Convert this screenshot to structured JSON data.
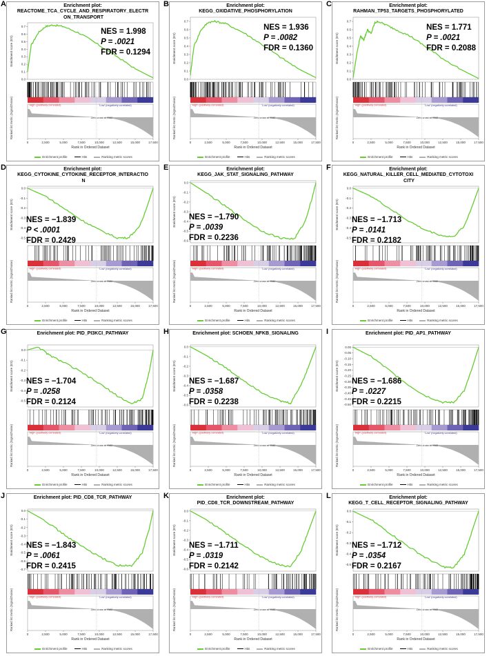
{
  "common": {
    "title_prefix": "Enrichment plot:",
    "ylabel_top": "Enrichment score (ES)",
    "ylabel_bottom": "Ranked list metric (Signal2Noise)",
    "xlabel": "Rank in Ordered Dataset",
    "x_ticks": [
      "0",
      "2,500",
      "5,000",
      "7,500",
      "10,000",
      "12,500",
      "15,000",
      "17,500"
    ],
    "zero_cross": "Zero cross at 9582",
    "high_label": "'High' (positively correlated)",
    "low_label": "'Low' (negatively correlated)",
    "legend": [
      "Enrichment profile",
      "Hits",
      "Ranking metric scores"
    ],
    "colors": {
      "profile": "#66cc33",
      "hits": "#000000",
      "metric": "#b0b0b0"
    }
  },
  "chart_data": [
    {
      "type": "line",
      "panel": "A",
      "title_line1": "Enrichment plot:",
      "title_line2": "REACTOME_TCA_CYCLE_AND_RESPIRATORY_ELECTR",
      "title_line3": "ON_TRANSPORT",
      "nes": "NES = 1.998",
      "p": "P = .0021",
      "fdr": "FDR = 0.1294",
      "es_ticks": [
        "0.7",
        "0.6",
        "0.5",
        "0.4",
        "0.3",
        "0.2",
        "0.1",
        "0.0"
      ],
      "ylim": [
        0,
        0.75
      ],
      "x": [
        0,
        500,
        1500,
        2500,
        3500,
        5000,
        7500,
        10000,
        12500,
        15000,
        17500
      ],
      "es": [
        0.1,
        0.45,
        0.62,
        0.7,
        0.72,
        0.7,
        0.6,
        0.45,
        0.3,
        0.14,
        0.02
      ]
    },
    {
      "type": "line",
      "panel": "B",
      "title_line1": "Enrichment plot:",
      "title_line2": "KEGG_OXIDATIVE_PHOSPHORYLATION",
      "title_line3": "",
      "nes": "NES = 1.936",
      "p": "P = .0082",
      "fdr": "FDR = 0.1360",
      "es_ticks": [
        "0.7",
        "0.6",
        "0.5",
        "0.4",
        "0.3",
        "0.2",
        "0.1",
        "0.0"
      ],
      "ylim": [
        0,
        0.75
      ],
      "x": [
        0,
        500,
        1500,
        2500,
        3500,
        5000,
        7500,
        10000,
        12500,
        15000,
        17500
      ],
      "es": [
        0.05,
        0.4,
        0.6,
        0.69,
        0.7,
        0.67,
        0.56,
        0.42,
        0.27,
        0.13,
        0.02
      ]
    },
    {
      "type": "line",
      "panel": "C",
      "title_line1": "Enrichment plot:",
      "title_line2": "RAHMAN_TP53_TARGETS_PHOSPHORYLATED",
      "title_line3": "",
      "nes": "NES = 1.771",
      "p": "P = .0021",
      "fdr": "FDR = 0.2088",
      "es_ticks": [
        "0.7",
        "0.6",
        "0.5",
        "0.4",
        "0.3",
        "0.2",
        "0.1",
        "0.0"
      ],
      "ylim": [
        0,
        0.75
      ],
      "x": [
        0,
        500,
        1000,
        1500,
        2000,
        2500,
        3000,
        3500,
        4500,
        6000,
        8000,
        10000,
        12500,
        15000,
        17500
      ],
      "es": [
        0.02,
        0.3,
        0.52,
        0.48,
        0.6,
        0.55,
        0.68,
        0.7,
        0.66,
        0.6,
        0.52,
        0.4,
        0.25,
        0.12,
        0.01
      ]
    },
    {
      "type": "line",
      "panel": "D",
      "title_line1": "Enrichment plot:",
      "title_line2": "KEGG_CYTOKINE_CYTOKINE_RECEPTOR_INTERACTIO",
      "title_line3": "N",
      "nes": "NES = −1.839",
      "p": "P < .0001",
      "fdr": "FDR = 0.2429",
      "es_ticks": [
        "0.0",
        "-0.1",
        "-0.2",
        "-0.3",
        "-0.4",
        "-0.5"
      ],
      "ylim": [
        -0.55,
        0.02
      ],
      "x": [
        0,
        2500,
        5000,
        7500,
        10000,
        12500,
        14000,
        15500,
        16500,
        17500
      ],
      "es": [
        0.0,
        -0.08,
        -0.2,
        -0.32,
        -0.42,
        -0.5,
        -0.5,
        -0.4,
        -0.22,
        0.0
      ]
    },
    {
      "type": "line",
      "panel": "E",
      "title_line1": "Enrichment plot:",
      "title_line2": "KEGG_JAK_STAT_SIGNALING_PATHWAY",
      "title_line3": "",
      "nes": "NES = −1.790",
      "p": "P = .0039",
      "fdr": "FDR = 0.2236",
      "es_ticks": [
        "0.0",
        "-0.1",
        "-0.2",
        "-0.3",
        "-0.4",
        "-0.5",
        "-0.6"
      ],
      "ylim": [
        -0.62,
        0.02
      ],
      "x": [
        0,
        2500,
        5000,
        7500,
        10000,
        12500,
        14500,
        16000,
        17000,
        17500
      ],
      "es": [
        0.0,
        -0.12,
        -0.25,
        -0.38,
        -0.5,
        -0.57,
        -0.58,
        -0.4,
        -0.15,
        0.0
      ]
    },
    {
      "type": "line",
      "panel": "F",
      "title_line1": "Enrichment plot:",
      "title_line2": "KEGG_NATURAL_KILLER_CELL_MEDIATED_CYTOTOXI",
      "title_line3": "CITY",
      "nes": "NES = −1.713",
      "p": "P = .0141",
      "fdr": "FDR = 0.2182",
      "es_ticks": [
        "0.0",
        "-0.1",
        "-0.2",
        "-0.3",
        "-0.4",
        "-0.5"
      ],
      "ylim": [
        -0.55,
        0.02
      ],
      "x": [
        0,
        2500,
        5000,
        7500,
        10000,
        12500,
        14000,
        15500,
        16500,
        17500
      ],
      "es": [
        0.0,
        -0.08,
        -0.2,
        -0.32,
        -0.42,
        -0.48,
        -0.49,
        -0.38,
        -0.2,
        0.0
      ]
    },
    {
      "type": "line",
      "panel": "G",
      "title_line1": "Enrichment plot: PID_PI3KCI_PATHWAY",
      "title_line2": "",
      "title_line3": "",
      "nes": "NES = −1.704",
      "p": "P = .0258",
      "fdr": "FDR = 0.2124",
      "es_ticks": [
        "0.0",
        "-0.1",
        "-0.2",
        "-0.3",
        "-0.4",
        "-0.5"
      ],
      "ylim": [
        -0.56,
        0.05
      ],
      "x": [
        0,
        1500,
        3000,
        5000,
        7500,
        10000,
        12500,
        14500,
        16000,
        17000,
        17500
      ],
      "es": [
        0.0,
        0.03,
        -0.05,
        -0.12,
        -0.22,
        -0.33,
        -0.45,
        -0.53,
        -0.48,
        -0.2,
        0.0
      ]
    },
    {
      "type": "line",
      "panel": "H",
      "title_line1": "Enrichment plot: SCHOEN_NFKB_SIGNALING",
      "title_line2": "",
      "title_line3": "",
      "nes": "NES = −1.687",
      "p": "P = .0358",
      "fdr": "FDR = 0.2238",
      "es_ticks": [
        "0.0",
        "-0.1",
        "-0.2",
        "-0.3",
        "-0.4",
        "-0.5",
        "-0.6"
      ],
      "ylim": [
        -0.62,
        0.02
      ],
      "x": [
        0,
        2500,
        5000,
        7500,
        10000,
        12500,
        14000,
        15500,
        16500,
        17500
      ],
      "es": [
        0.0,
        -0.1,
        -0.22,
        -0.35,
        -0.47,
        -0.56,
        -0.58,
        -0.38,
        -0.2,
        0.0
      ]
    },
    {
      "type": "line",
      "panel": "I",
      "title_line1": "Enrichment plot: PID_AP1_PATHWAY",
      "title_line2": "",
      "title_line3": "",
      "nes": "NES = −1.686",
      "p": "P = .0227",
      "fdr": "FDR = 0.2215",
      "es_ticks": [
        "0.00",
        "-0.05",
        "-0.10",
        "-0.15",
        "-0.20",
        "-0.25",
        "-0.30",
        "-0.35",
        "-0.40",
        "-0.45",
        "-0.50"
      ],
      "ylim": [
        -0.52,
        0.02
      ],
      "x": [
        0,
        2500,
        5000,
        7500,
        10000,
        12500,
        14000,
        15500,
        16500,
        17500
      ],
      "es": [
        0.0,
        -0.08,
        -0.2,
        -0.32,
        -0.42,
        -0.48,
        -0.48,
        -0.38,
        -0.2,
        0.0
      ]
    },
    {
      "type": "line",
      "panel": "J",
      "title_line1": "Enrichment plot: PID_CD8_TCR_PATHWAY",
      "title_line2": "",
      "title_line3": "",
      "nes": "NES = −1.843",
      "p": "P = .0061",
      "fdr": "FDR = 0.2415",
      "es_ticks": [
        "0.0",
        "-0.1",
        "-0.2",
        "-0.3",
        "-0.4",
        "-0.5",
        "-0.6",
        "-0.7"
      ],
      "ylim": [
        -0.72,
        0.02
      ],
      "x": [
        0,
        2500,
        5000,
        7500,
        10000,
        12500,
        14500,
        16000,
        17000,
        17500
      ],
      "es": [
        0.0,
        -0.12,
        -0.28,
        -0.42,
        -0.55,
        -0.65,
        -0.66,
        -0.5,
        -0.2,
        0.0
      ]
    },
    {
      "type": "line",
      "panel": "K",
      "title_line1": "Enrichment plot:",
      "title_line2": "PID_CD8_TCR_DOWNSTREAM_PATHWAY",
      "title_line3": "",
      "nes": "NES = −1.711",
      "p": "P = .0319",
      "fdr": "FDR = 0.2142",
      "es_ticks": [
        "0.0",
        "-0.1",
        "-0.2",
        "-0.3",
        "-0.4",
        "-0.5",
        "-0.6"
      ],
      "ylim": [
        -0.62,
        0.02
      ],
      "x": [
        0,
        2500,
        5000,
        7500,
        10000,
        12500,
        14000,
        15500,
        16500,
        17500
      ],
      "es": [
        0.0,
        -0.1,
        -0.23,
        -0.36,
        -0.48,
        -0.56,
        -0.57,
        -0.4,
        -0.2,
        0.0
      ]
    },
    {
      "type": "line",
      "panel": "L",
      "title_line1": "Enrichment plot:",
      "title_line2": "KEGG_T_CELL_RECEPTOR_SIGNALING_PATHWAY",
      "title_line3": "",
      "nes": "NES = −1.712",
      "p": "P = .0354",
      "fdr": "FDR = 0.2167",
      "es_ticks": [
        "0.0",
        "-0.1",
        "-0.2",
        "-0.3",
        "-0.4",
        "-0.5"
      ],
      "ylim": [
        -0.56,
        0.02
      ],
      "x": [
        0,
        2500,
        5000,
        7500,
        10000,
        12500,
        14000,
        15500,
        16500,
        17500
      ],
      "es": [
        0.0,
        -0.08,
        -0.2,
        -0.32,
        -0.43,
        -0.52,
        -0.53,
        -0.4,
        -0.2,
        0.0
      ]
    }
  ]
}
